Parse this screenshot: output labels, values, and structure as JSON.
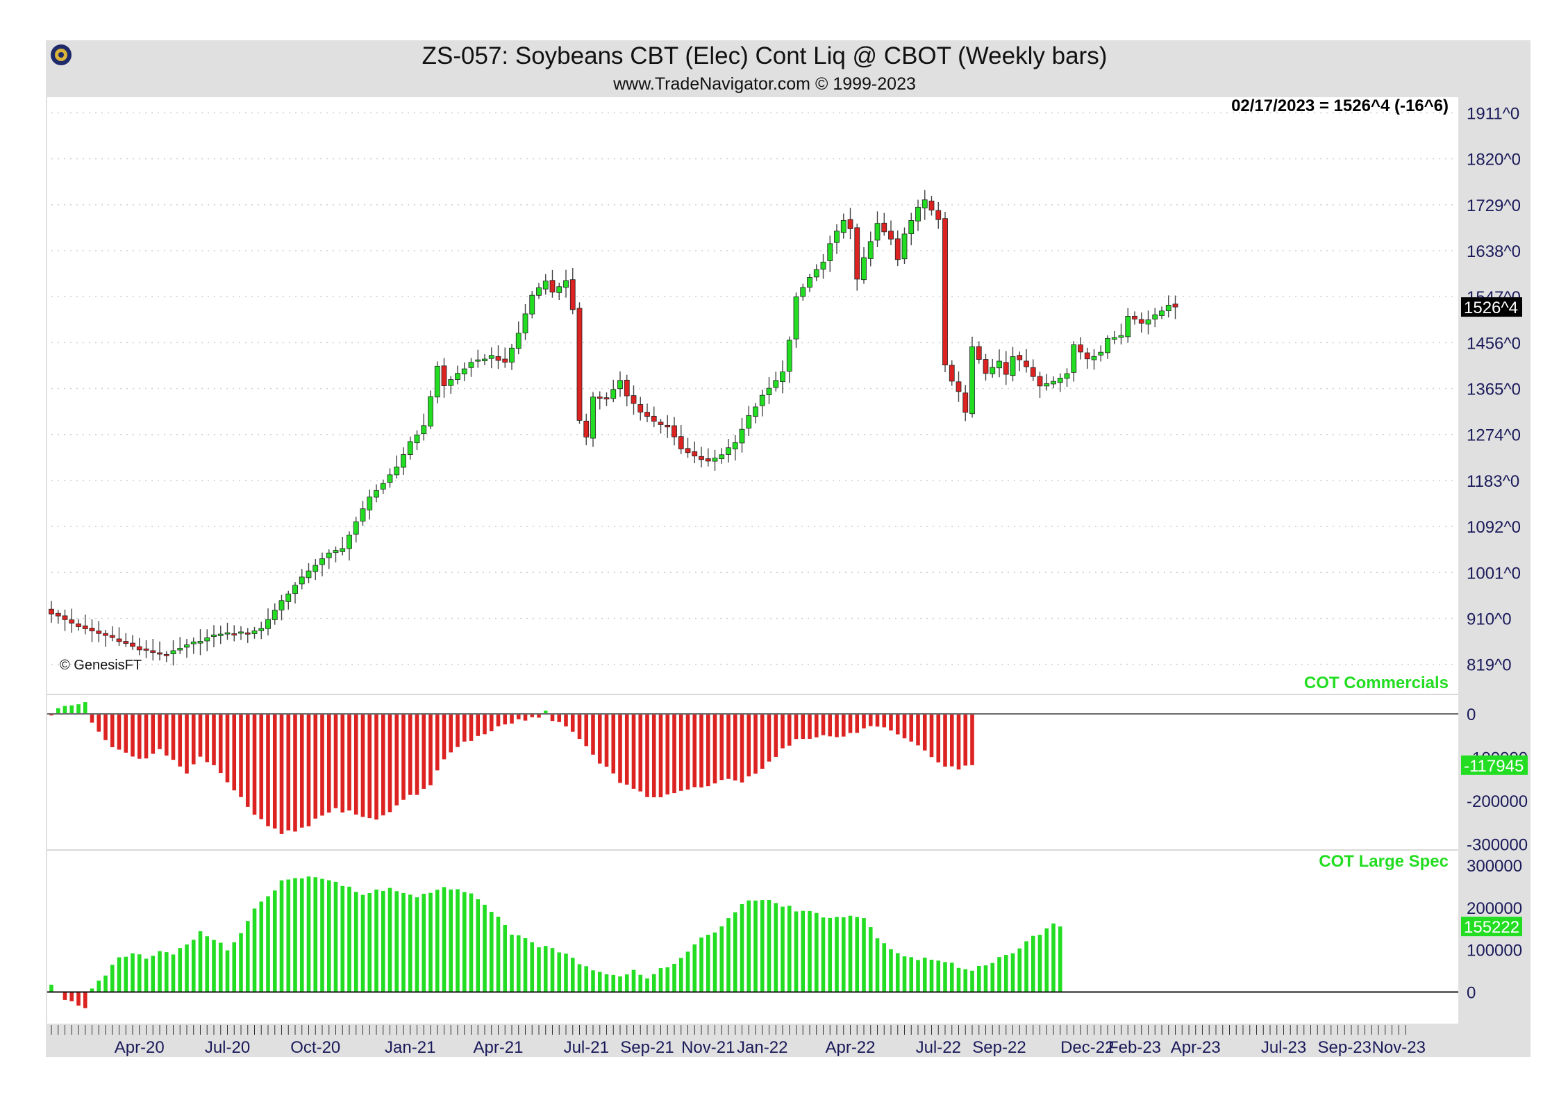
{
  "header": {
    "title": "ZS-057:  Soybeans CBT (Elec) Cont Liq @ CBOT  (Weekly bars)",
    "subtitle": "www.TradeNavigator.com © 1999-2023"
  },
  "info": {
    "last_quote": "02/17/2023 = 1526^4 (-16^6)",
    "copyright": "© GenesisFT"
  },
  "colors": {
    "up": "#22dd22",
    "down": "#dd2222",
    "frame": "#e0e0e0",
    "axis_text": "#1a1a5a"
  },
  "chart_data": [
    {
      "type": "candlestick",
      "title": "ZS-057:  Soybeans CBT (Elec) Cont Liq @ CBOT  (Weekly bars)",
      "y_ticks": [
        "1911^0",
        "1820^0",
        "1729^0",
        "1638^0",
        "1547^0",
        "1456^0",
        "1365^0",
        "1274^0",
        "1183^0",
        "1092^0",
        "1001^0",
        "910^0",
        "819^0"
      ],
      "y_tick_values": [
        1911,
        1820,
        1729,
        1638,
        1547,
        1456,
        1365,
        1274,
        1183,
        1092,
        1001,
        910,
        819
      ],
      "ylim": [
        780,
        1935
      ],
      "last_label": "1526^4",
      "last_value": 1526.5,
      "x_tick_labels": [
        "Apr-20",
        "Jul-20",
        "Oct-20",
        "Jan-21",
        "Apr-21",
        "Jul-21",
        "Sep-21",
        "Nov-21",
        "Jan-22",
        "Apr-22",
        "Jul-22",
        "Sep-22",
        "Dec-22",
        "Feb-23",
        "Apr-23",
        "Jul-23",
        "Sep-23",
        "Nov-23"
      ],
      "x_tick_weeks": [
        13,
        26,
        39,
        53,
        66,
        79,
        88,
        97,
        105,
        118,
        131,
        140,
        153,
        160,
        169,
        182,
        191,
        199
      ],
      "grid": true,
      "close_anchors": [
        [
          0,
          920
        ],
        [
          5,
          888
        ],
        [
          9,
          872
        ],
        [
          13,
          848
        ],
        [
          17,
          838
        ],
        [
          21,
          862
        ],
        [
          25,
          880
        ],
        [
          29,
          882
        ],
        [
          31,
          890
        ],
        [
          34,
          945
        ],
        [
          38,
          1005
        ],
        [
          41,
          1038
        ],
        [
          43,
          1050
        ],
        [
          45,
          1100
        ],
        [
          47,
          1152
        ],
        [
          49,
          1175
        ],
        [
          51,
          1210
        ],
        [
          53,
          1260
        ],
        [
          55,
          1290
        ],
        [
          57,
          1410
        ],
        [
          58,
          1370
        ],
        [
          60,
          1395
        ],
        [
          62,
          1415
        ],
        [
          65,
          1430
        ],
        [
          67,
          1415
        ],
        [
          69,
          1475
        ],
        [
          71,
          1550
        ],
        [
          73,
          1580
        ],
        [
          74,
          1555
        ],
        [
          76,
          1580
        ],
        [
          77,
          1520
        ],
        [
          78,
          1300
        ],
        [
          79,
          1270
        ],
        [
          80,
          1350
        ],
        [
          82,
          1345
        ],
        [
          84,
          1380
        ],
        [
          85,
          1350
        ],
        [
          87,
          1320
        ],
        [
          89,
          1300
        ],
        [
          91,
          1290
        ],
        [
          93,
          1245
        ],
        [
          95,
          1230
        ],
        [
          97,
          1220
        ],
        [
          99,
          1235
        ],
        [
          101,
          1260
        ],
        [
          103,
          1310
        ],
        [
          105,
          1350
        ],
        [
          107,
          1380
        ],
        [
          108,
          1400
        ],
        [
          109,
          1460
        ],
        [
          110,
          1545
        ],
        [
          112,
          1585
        ],
        [
          114,
          1615
        ],
        [
          115,
          1650
        ],
        [
          117,
          1700
        ],
        [
          118,
          1680
        ],
        [
          119,
          1580
        ],
        [
          120,
          1625
        ],
        [
          122,
          1690
        ],
        [
          124,
          1660
        ],
        [
          125,
          1620
        ],
        [
          126,
          1670
        ],
        [
          128,
          1725
        ],
        [
          129,
          1740
        ],
        [
          130,
          1720
        ],
        [
          131,
          1700
        ],
        [
          132,
          1410
        ],
        [
          133,
          1380
        ],
        [
          134,
          1360
        ],
        [
          135,
          1320
        ],
        [
          136,
          1450
        ],
        [
          138,
          1395
        ],
        [
          140,
          1420
        ],
        [
          141,
          1395
        ],
        [
          142,
          1430
        ],
        [
          144,
          1410
        ],
        [
          146,
          1370
        ],
        [
          148,
          1380
        ],
        [
          150,
          1395
        ],
        [
          151,
          1450
        ],
        [
          153,
          1425
        ],
        [
          155,
          1435
        ],
        [
          156,
          1465
        ],
        [
          158,
          1470
        ],
        [
          159,
          1510
        ],
        [
          161,
          1495
        ],
        [
          163,
          1510
        ],
        [
          165,
          1530
        ],
        [
          166,
          1526.5
        ]
      ]
    },
    {
      "type": "bar",
      "title": "COT Commercials",
      "y_ticks": [
        "0",
        "-100000",
        "-200000",
        "-300000"
      ],
      "y_tick_values": [
        0,
        -100000,
        -200000,
        -300000
      ],
      "ylim": [
        -310000,
        40000
      ],
      "last_label": "-117945",
      "last_value": -117945,
      "value_anchors": [
        [
          0,
          -5000
        ],
        [
          1,
          10000
        ],
        [
          3,
          20000
        ],
        [
          5,
          25000
        ],
        [
          6,
          -20000
        ],
        [
          8,
          -60000
        ],
        [
          10,
          -85000
        ],
        [
          12,
          -95000
        ],
        [
          14,
          -105000
        ],
        [
          16,
          -85000
        ],
        [
          18,
          -105000
        ],
        [
          20,
          -135000
        ],
        [
          22,
          -100000
        ],
        [
          24,
          -120000
        ],
        [
          26,
          -160000
        ],
        [
          28,
          -195000
        ],
        [
          30,
          -230000
        ],
        [
          32,
          -260000
        ],
        [
          34,
          -275000
        ],
        [
          36,
          -270000
        ],
        [
          38,
          -255000
        ],
        [
          40,
          -235000
        ],
        [
          42,
          -220000
        ],
        [
          44,
          -225000
        ],
        [
          46,
          -235000
        ],
        [
          48,
          -245000
        ],
        [
          50,
          -225000
        ],
        [
          52,
          -195000
        ],
        [
          54,
          -185000
        ],
        [
          56,
          -160000
        ],
        [
          58,
          -105000
        ],
        [
          60,
          -75000
        ],
        [
          62,
          -60000
        ],
        [
          64,
          -45000
        ],
        [
          66,
          -30000
        ],
        [
          68,
          -20000
        ],
        [
          70,
          -12000
        ],
        [
          72,
          -5000
        ],
        [
          73,
          8000
        ],
        [
          74,
          -15000
        ],
        [
          76,
          -25000
        ],
        [
          78,
          -60000
        ],
        [
          80,
          -95000
        ],
        [
          82,
          -125000
        ],
        [
          84,
          -155000
        ],
        [
          86,
          -175000
        ],
        [
          88,
          -190000
        ],
        [
          90,
          -190000
        ],
        [
          92,
          -185000
        ],
        [
          94,
          -175000
        ],
        [
          96,
          -170000
        ],
        [
          98,
          -160000
        ],
        [
          100,
          -150000
        ],
        [
          102,
          -155000
        ],
        [
          104,
          -140000
        ],
        [
          106,
          -110000
        ],
        [
          108,
          -80000
        ],
        [
          110,
          -60000
        ],
        [
          112,
          -55000
        ],
        [
          114,
          -50000
        ],
        [
          116,
          -55000
        ],
        [
          118,
          -45000
        ],
        [
          120,
          -35000
        ],
        [
          122,
          -25000
        ],
        [
          124,
          -40000
        ],
        [
          126,
          -60000
        ],
        [
          128,
          -75000
        ],
        [
          130,
          -95000
        ],
        [
          132,
          -120000
        ],
        [
          134,
          -128000
        ],
        [
          136,
          -117945
        ]
      ]
    },
    {
      "type": "bar",
      "title": "COT Large Spec",
      "y_ticks": [
        "300000",
        "200000",
        "100000",
        "0"
      ],
      "y_tick_values": [
        300000,
        200000,
        100000,
        0
      ],
      "ylim": [
        -60000,
        310000
      ],
      "last_label": "155222",
      "last_value": 155222,
      "value_anchors": [
        [
          0,
          15000
        ],
        [
          1,
          -5000
        ],
        [
          3,
          -25000
        ],
        [
          5,
          -35000
        ],
        [
          6,
          10000
        ],
        [
          8,
          40000
        ],
        [
          10,
          85000
        ],
        [
          12,
          90000
        ],
        [
          14,
          80000
        ],
        [
          16,
          95000
        ],
        [
          18,
          90000
        ],
        [
          20,
          110000
        ],
        [
          22,
          145000
        ],
        [
          24,
          125000
        ],
        [
          26,
          100000
        ],
        [
          28,
          140000
        ],
        [
          30,
          200000
        ],
        [
          32,
          225000
        ],
        [
          34,
          260000
        ],
        [
          36,
          270000
        ],
        [
          38,
          275000
        ],
        [
          40,
          270000
        ],
        [
          42,
          260000
        ],
        [
          44,
          245000
        ],
        [
          46,
          230000
        ],
        [
          48,
          240000
        ],
        [
          50,
          245000
        ],
        [
          52,
          235000
        ],
        [
          54,
          225000
        ],
        [
          56,
          235000
        ],
        [
          58,
          245000
        ],
        [
          60,
          240000
        ],
        [
          62,
          230000
        ],
        [
          64,
          210000
        ],
        [
          66,
          175000
        ],
        [
          68,
          135000
        ],
        [
          70,
          125000
        ],
        [
          72,
          110000
        ],
        [
          74,
          100000
        ],
        [
          76,
          90000
        ],
        [
          78,
          70000
        ],
        [
          80,
          55000
        ],
        [
          82,
          45000
        ],
        [
          84,
          40000
        ],
        [
          86,
          50000
        ],
        [
          88,
          35000
        ],
        [
          90,
          55000
        ],
        [
          92,
          65000
        ],
        [
          94,
          100000
        ],
        [
          96,
          125000
        ],
        [
          98,
          140000
        ],
        [
          100,
          175000
        ],
        [
          102,
          205000
        ],
        [
          104,
          220000
        ],
        [
          106,
          215000
        ],
        [
          108,
          205000
        ],
        [
          110,
          195000
        ],
        [
          112,
          190000
        ],
        [
          114,
          180000
        ],
        [
          116,
          175000
        ],
        [
          118,
          180000
        ],
        [
          120,
          175000
        ],
        [
          122,
          130000
        ],
        [
          124,
          100000
        ],
        [
          126,
          85000
        ],
        [
          128,
          80000
        ],
        [
          130,
          75000
        ],
        [
          132,
          70000
        ],
        [
          134,
          60000
        ],
        [
          136,
          55000
        ],
        [
          138,
          65000
        ],
        [
          140,
          80000
        ],
        [
          142,
          95000
        ],
        [
          144,
          120000
        ],
        [
          146,
          140000
        ],
        [
          148,
          165000
        ],
        [
          149,
          155222
        ]
      ]
    }
  ]
}
